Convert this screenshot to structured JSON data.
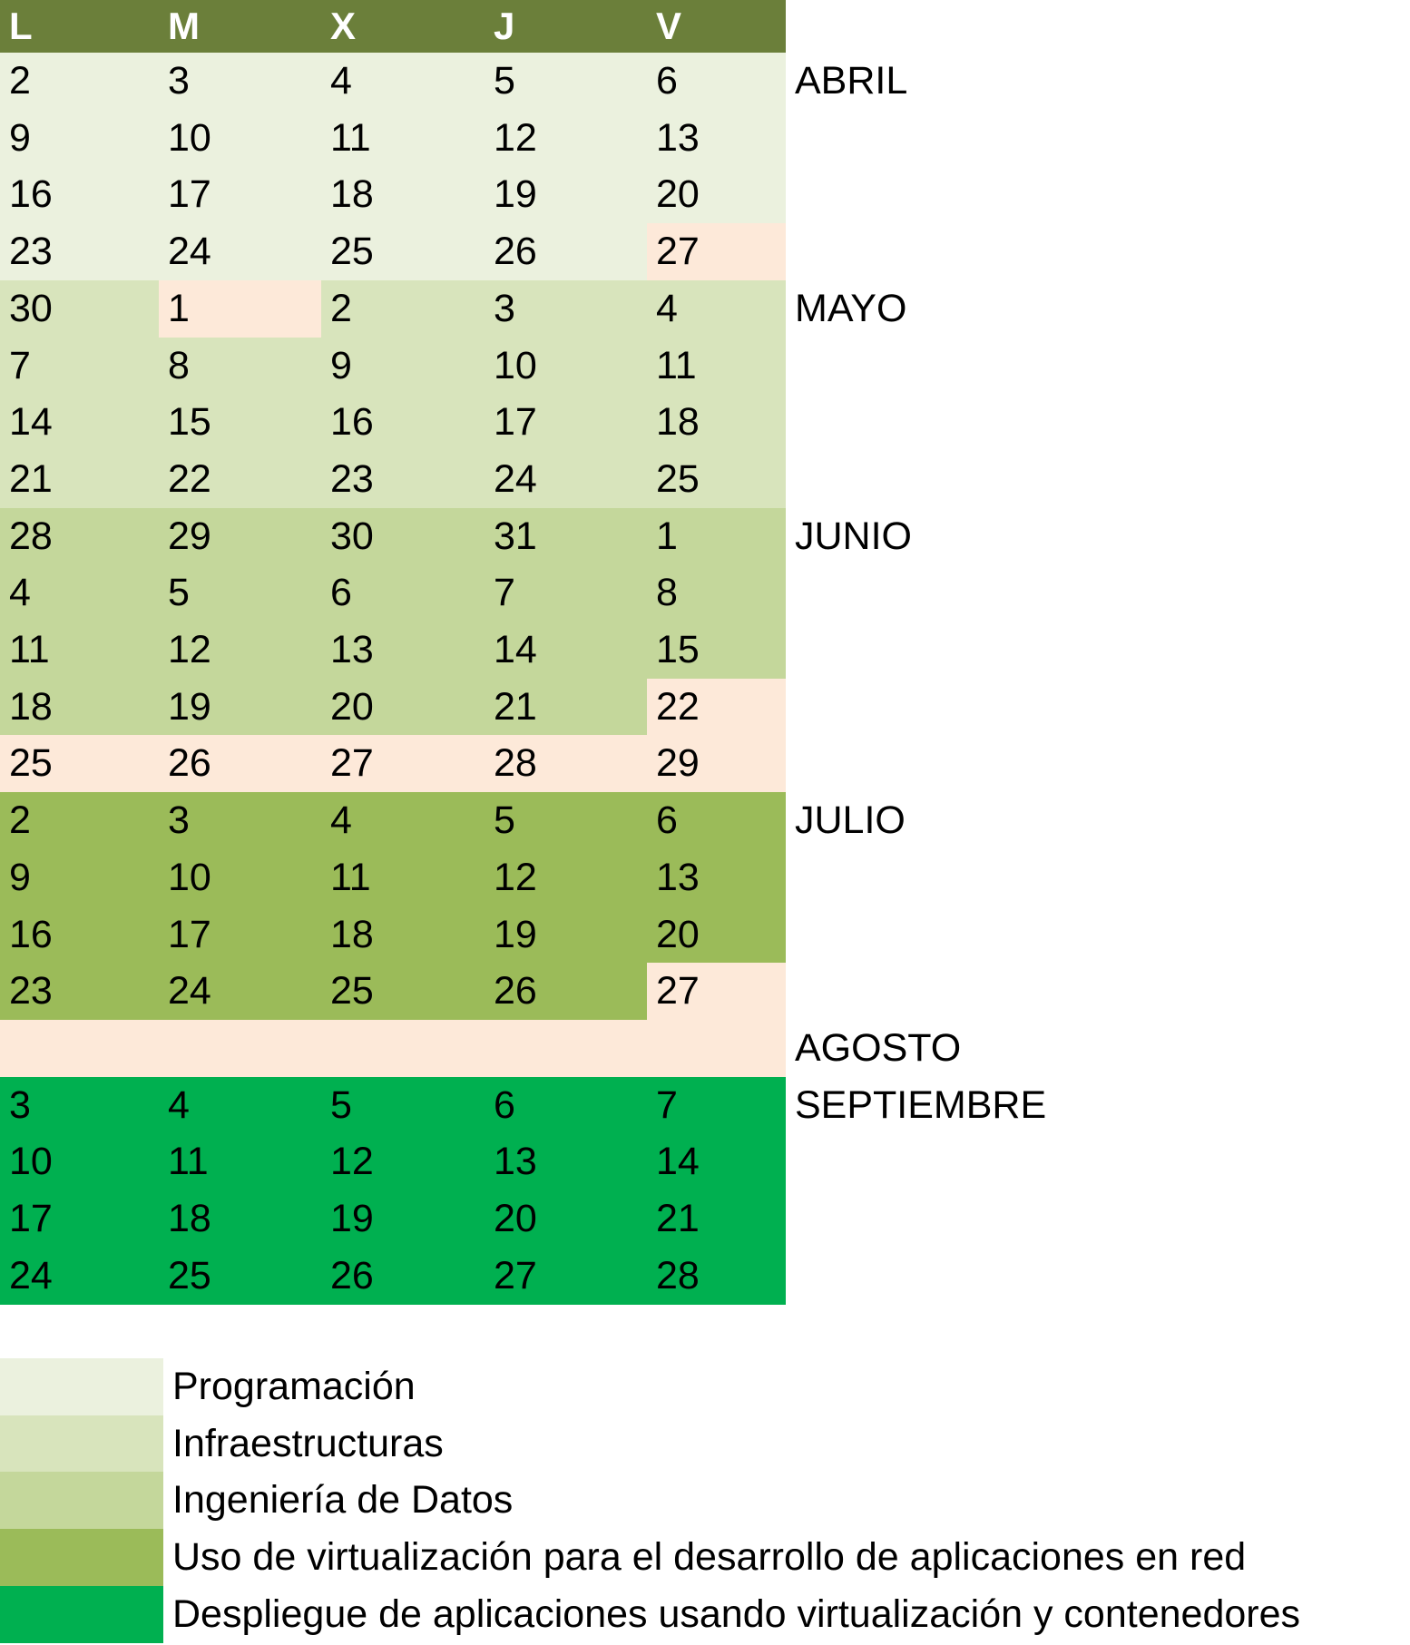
{
  "colors": {
    "header": "#6b7f3a",
    "programacion": "#ebf1de",
    "infraestructuras": "#d8e4bc",
    "ingenieria": "#c4d79b",
    "virtualizacion": "#9bbb59",
    "despliegue": "#00b050",
    "holiday": "#fde9d9"
  },
  "header": [
    "L",
    "M",
    "X",
    "J",
    "V"
  ],
  "weeks": [
    {
      "days": [
        "2",
        "3",
        "4",
        "5",
        "6"
      ],
      "colors": [
        "programacion",
        "programacion",
        "programacion",
        "programacion",
        "programacion"
      ],
      "month": "ABRIL"
    },
    {
      "days": [
        "9",
        "10",
        "11",
        "12",
        "13"
      ],
      "colors": [
        "programacion",
        "programacion",
        "programacion",
        "programacion",
        "programacion"
      ],
      "month": ""
    },
    {
      "days": [
        "16",
        "17",
        "18",
        "19",
        "20"
      ],
      "colors": [
        "programacion",
        "programacion",
        "programacion",
        "programacion",
        "programacion"
      ],
      "month": ""
    },
    {
      "days": [
        "23",
        "24",
        "25",
        "26",
        "27"
      ],
      "colors": [
        "programacion",
        "programacion",
        "programacion",
        "programacion",
        "holiday"
      ],
      "month": ""
    },
    {
      "days": [
        "30",
        "1",
        "2",
        "3",
        "4"
      ],
      "colors": [
        "infraestructuras",
        "holiday",
        "infraestructuras",
        "infraestructuras",
        "infraestructuras"
      ],
      "month": "MAYO"
    },
    {
      "days": [
        "7",
        "8",
        "9",
        "10",
        "11"
      ],
      "colors": [
        "infraestructuras",
        "infraestructuras",
        "infraestructuras",
        "infraestructuras",
        "infraestructuras"
      ],
      "month": ""
    },
    {
      "days": [
        "14",
        "15",
        "16",
        "17",
        "18"
      ],
      "colors": [
        "infraestructuras",
        "infraestructuras",
        "infraestructuras",
        "infraestructuras",
        "infraestructuras"
      ],
      "month": ""
    },
    {
      "days": [
        "21",
        "22",
        "23",
        "24",
        "25"
      ],
      "colors": [
        "infraestructuras",
        "infraestructuras",
        "infraestructuras",
        "infraestructuras",
        "infraestructuras"
      ],
      "month": ""
    },
    {
      "days": [
        "28",
        "29",
        "30",
        "31",
        "1"
      ],
      "colors": [
        "ingenieria",
        "ingenieria",
        "ingenieria",
        "ingenieria",
        "ingenieria"
      ],
      "month": "JUNIO"
    },
    {
      "days": [
        "4",
        "5",
        "6",
        "7",
        "8"
      ],
      "colors": [
        "ingenieria",
        "ingenieria",
        "ingenieria",
        "ingenieria",
        "ingenieria"
      ],
      "month": ""
    },
    {
      "days": [
        "11",
        "12",
        "13",
        "14",
        "15"
      ],
      "colors": [
        "ingenieria",
        "ingenieria",
        "ingenieria",
        "ingenieria",
        "ingenieria"
      ],
      "month": ""
    },
    {
      "days": [
        "18",
        "19",
        "20",
        "21",
        "22"
      ],
      "colors": [
        "ingenieria",
        "ingenieria",
        "ingenieria",
        "ingenieria",
        "holiday"
      ],
      "month": ""
    },
    {
      "days": [
        "25",
        "26",
        "27",
        "28",
        "29"
      ],
      "colors": [
        "holiday",
        "holiday",
        "holiday",
        "holiday",
        "holiday"
      ],
      "month": ""
    },
    {
      "days": [
        "2",
        "3",
        "4",
        "5",
        "6"
      ],
      "colors": [
        "virtualizacion",
        "virtualizacion",
        "virtualizacion",
        "virtualizacion",
        "virtualizacion"
      ],
      "month": "JULIO"
    },
    {
      "days": [
        "9",
        "10",
        "11",
        "12",
        "13"
      ],
      "colors": [
        "virtualizacion",
        "virtualizacion",
        "virtualizacion",
        "virtualizacion",
        "virtualizacion"
      ],
      "month": ""
    },
    {
      "days": [
        "16",
        "17",
        "18",
        "19",
        "20"
      ],
      "colors": [
        "virtualizacion",
        "virtualizacion",
        "virtualizacion",
        "virtualizacion",
        "virtualizacion"
      ],
      "month": ""
    },
    {
      "days": [
        "23",
        "24",
        "25",
        "26",
        "27"
      ],
      "colors": [
        "virtualizacion",
        "virtualizacion",
        "virtualizacion",
        "virtualizacion",
        "holiday"
      ],
      "month": ""
    },
    {
      "days": [
        "",
        "",
        "",
        "",
        ""
      ],
      "colors": [
        "holiday",
        "holiday",
        "holiday",
        "holiday",
        "holiday"
      ],
      "month": "AGOSTO"
    },
    {
      "days": [
        "3",
        "4",
        "5",
        "6",
        "7"
      ],
      "colors": [
        "despliegue",
        "despliegue",
        "despliegue",
        "despliegue",
        "despliegue"
      ],
      "month": "SEPTIEMBRE"
    },
    {
      "days": [
        "10",
        "11",
        "12",
        "13",
        "14"
      ],
      "colors": [
        "despliegue",
        "despliegue",
        "despliegue",
        "despliegue",
        "despliegue"
      ],
      "month": ""
    },
    {
      "days": [
        "17",
        "18",
        "19",
        "20",
        "21"
      ],
      "colors": [
        "despliegue",
        "despliegue",
        "despliegue",
        "despliegue",
        "despliegue"
      ],
      "month": ""
    },
    {
      "days": [
        "24",
        "25",
        "26",
        "27",
        "28"
      ],
      "colors": [
        "despliegue",
        "despliegue",
        "despliegue",
        "despliegue",
        "despliegue"
      ],
      "month": ""
    }
  ],
  "legend": [
    {
      "label": "Programación",
      "color": "programacion"
    },
    {
      "label": "Infraestructuras",
      "color": "infraestructuras"
    },
    {
      "label": "Ingeniería de Datos",
      "color": "ingenieria"
    },
    {
      "label": "Uso de virtualización para el desarrollo de aplicaciones en red",
      "color": "virtualizacion"
    },
    {
      "label": "Despliegue de aplicaciones usando virtualización y contenedores",
      "color": "despliegue"
    }
  ]
}
